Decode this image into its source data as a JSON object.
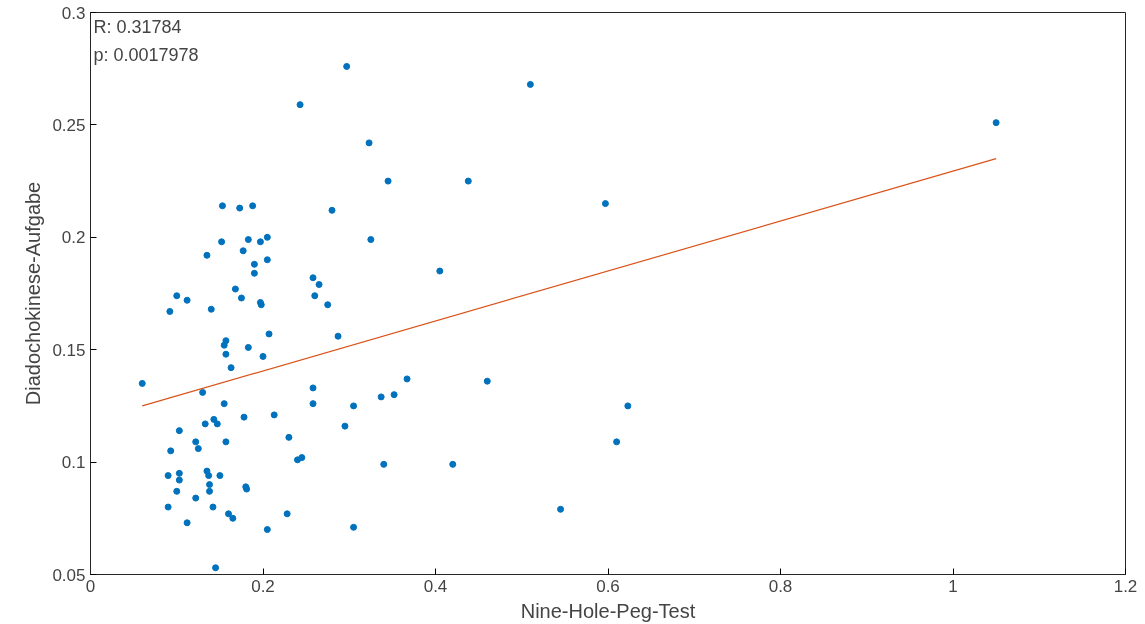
{
  "chart_data": {
    "type": "scatter",
    "xlabel": "Nine-Hole-Peg-Test",
    "ylabel": "Diadochokinese-Aufgabe",
    "annotations": [
      "R: 0.31784",
      "p: 0.0017978"
    ],
    "xlim": [
      0,
      1.2
    ],
    "xticks": [
      0,
      0.2,
      0.4,
      0.6,
      0.8,
      1,
      1.2
    ],
    "ylim": [
      0.05,
      0.3
    ],
    "yticks": [
      0.05,
      0.1,
      0.15,
      0.2,
      0.25,
      0.3
    ],
    "grid": false,
    "series": [
      {
        "color": "#0072bd",
        "marker": "circle",
        "x": [
          0.06,
          0.092,
          0.1,
          0.112,
          0.09,
          0.093,
          0.09,
          0.1,
          0.103,
          0.103,
          0.103,
          0.112,
          0.122,
          0.125,
          0.122,
          0.13,
          0.133,
          0.135,
          0.137,
          0.138,
          0.138,
          0.135,
          0.14,
          0.143,
          0.142,
          0.147,
          0.145,
          0.15,
          0.152,
          0.153,
          0.155,
          0.157,
          0.157,
          0.155,
          0.157,
          0.16,
          0.163,
          0.165,
          0.168,
          0.173,
          0.177,
          0.175,
          0.178,
          0.18,
          0.181,
          0.183,
          0.183,
          0.188,
          0.19,
          0.19,
          0.197,
          0.197,
          0.198,
          0.2,
          0.205,
          0.205,
          0.207,
          0.205,
          0.213,
          0.228,
          0.23,
          0.24,
          0.245,
          0.243,
          0.258,
          0.26,
          0.258,
          0.258,
          0.265,
          0.275,
          0.28,
          0.287,
          0.295,
          0.297,
          0.305,
          0.305,
          0.323,
          0.325,
          0.337,
          0.34,
          0.345,
          0.352,
          0.367,
          0.405,
          0.42,
          0.438,
          0.46,
          0.51,
          0.545,
          0.597,
          0.61,
          0.623,
          1.05
        ],
        "values": [
          0.135,
          0.167,
          0.174,
          0.172,
          0.094,
          0.105,
          0.08,
          0.087,
          0.095,
          0.092,
          0.114,
          0.073,
          0.109,
          0.106,
          0.084,
          0.131,
          0.117,
          0.096,
          0.094,
          0.09,
          0.087,
          0.192,
          0.168,
          0.119,
          0.08,
          0.117,
          0.053,
          0.094,
          0.198,
          0.214,
          0.152,
          0.154,
          0.148,
          0.126,
          0.109,
          0.077,
          0.142,
          0.075,
          0.177,
          0.213,
          0.194,
          0.173,
          0.12,
          0.089,
          0.088,
          0.199,
          0.151,
          0.214,
          0.184,
          0.188,
          0.198,
          0.171,
          0.17,
          0.147,
          0.2,
          0.19,
          0.157,
          0.07,
          0.121,
          0.077,
          0.111,
          0.101,
          0.102,
          0.259,
          0.182,
          0.174,
          0.133,
          0.126,
          0.179,
          0.17,
          0.212,
          0.156,
          0.116,
          0.276,
          0.125,
          0.071,
          0.242,
          0.199,
          0.129,
          0.099,
          0.225,
          0.13,
          0.137,
          0.185,
          0.099,
          0.225,
          0.136,
          0.268,
          0.079,
          0.215,
          0.109,
          0.125,
          0.251
        ]
      },
      {
        "type": "line",
        "color": "#d95319",
        "x": [
          0.06,
          1.05
        ],
        "values": [
          0.125,
          0.235
        ]
      }
    ]
  }
}
